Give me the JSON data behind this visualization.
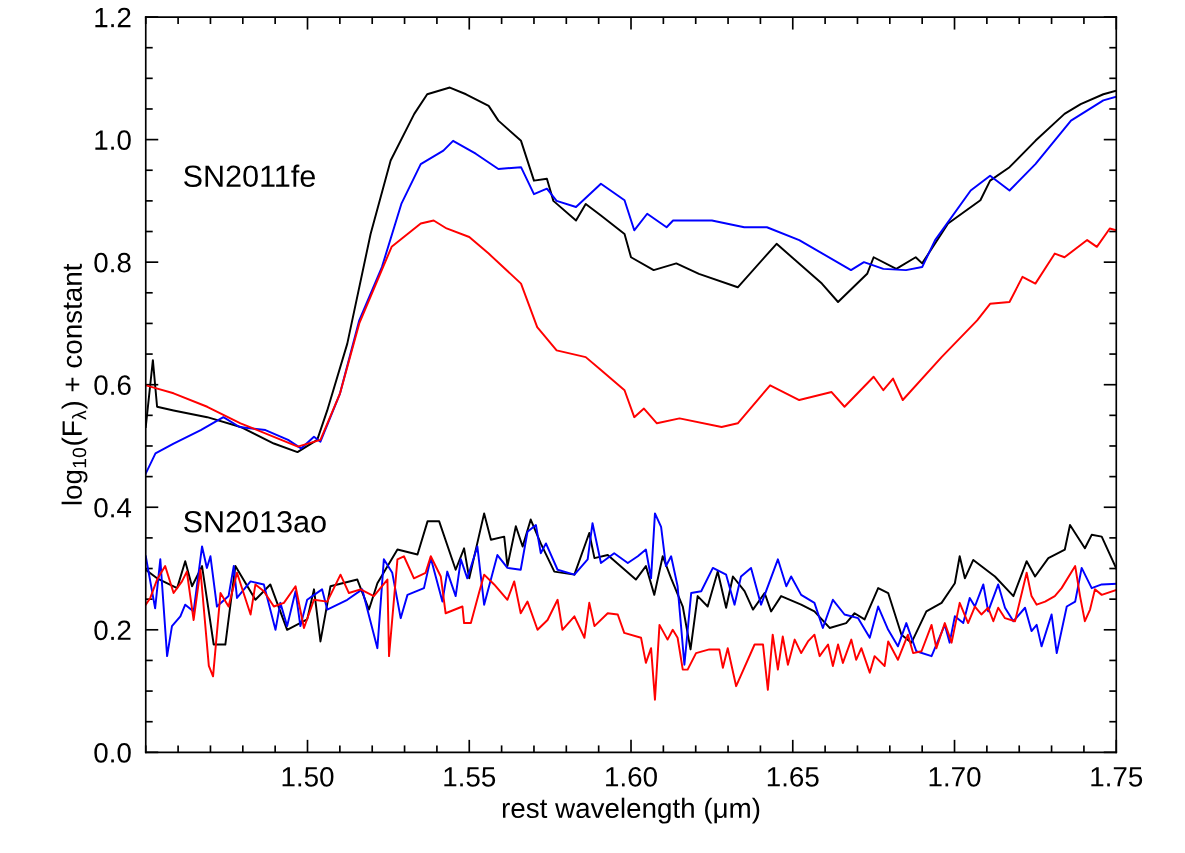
{
  "chart_data": {
    "type": "line",
    "xlabel": "rest wavelength (μm)",
    "ylabel": "log$_{10}$(F$_{λ}$) + constant",
    "annotations": [
      "SN2011fe",
      "SN2013ao"
    ],
    "xlim": [
      1.45,
      1.75
    ],
    "ylim": [
      0,
      1.2
    ],
    "xticks": [
      {
        "value": 1.5,
        "label": "1.50"
      },
      1.55,
      {
        "value": 1.6,
        "label": "1.60"
      },
      1.65,
      {
        "value": 1.7,
        "label": "1.70"
      },
      1.75
    ],
    "yticks": [
      {
        "value": 0,
        "label": "0.0"
      },
      0.2,
      0.4,
      0.6,
      0.8,
      {
        "value": 1,
        "label": "1.0"
      },
      1.2
    ],
    "grid": false,
    "marker": "none",
    "line_style": "solid",
    "series": [
      {
        "color": "#000000",
        "x": [
          1.45,
          1.4522,
          1.4535,
          1.4586,
          1.469,
          1.4793,
          1.4896,
          1.4969,
          1.503,
          1.5061,
          1.5123,
          1.5195,
          1.5257,
          1.533,
          1.537,
          1.544,
          1.549,
          1.556,
          1.559,
          1.566,
          1.57,
          1.574,
          1.576,
          1.583,
          1.586,
          1.5907,
          1.598,
          1.6,
          1.607,
          1.614,
          1.621,
          1.633,
          1.645,
          1.659,
          1.664,
          1.673,
          1.675,
          1.682,
          1.688,
          1.69,
          1.698,
          1.708,
          1.711,
          1.717,
          1.725,
          1.734,
          1.739,
          1.746,
          1.75
        ],
        "values": [
          0.531,
          0.64,
          0.564,
          0.558,
          0.547,
          0.531,
          0.504,
          0.49,
          0.51,
          0.558,
          0.667,
          0.846,
          0.966,
          1.042,
          1.074,
          1.085,
          1.074,
          1.055,
          1.031,
          0.998,
          0.933,
          0.936,
          0.9,
          0.868,
          0.895,
          0.876,
          0.846,
          0.808,
          0.787,
          0.798,
          0.781,
          0.759,
          0.83,
          0.765,
          0.735,
          0.781,
          0.808,
          0.789,
          0.808,
          0.798,
          0.863,
          0.901,
          0.933,
          0.955,
          0.998,
          1.042,
          1.058,
          1.074,
          1.08
        ]
      },
      {
        "color": "#0000ff",
        "x": [
          1.45,
          1.453,
          1.4586,
          1.467,
          1.474,
          1.479,
          1.487,
          1.494,
          1.498,
          1.502,
          1.504,
          1.51,
          1.516,
          1.523,
          1.529,
          1.535,
          1.542,
          1.545,
          1.552,
          1.559,
          1.566,
          1.57,
          1.574,
          1.577,
          1.583,
          1.5907,
          1.598,
          1.601,
          1.605,
          1.611,
          1.613,
          1.625,
          1.635,
          1.642,
          1.652,
          1.668,
          1.672,
          1.678,
          1.685,
          1.69,
          1.694,
          1.705,
          1.711,
          1.717,
          1.725,
          1.736,
          1.746,
          1.75
        ],
        "values": [
          0.455,
          0.488,
          0.504,
          0.526,
          0.547,
          0.531,
          0.526,
          0.51,
          0.496,
          0.515,
          0.507,
          0.585,
          0.705,
          0.792,
          0.895,
          0.96,
          0.982,
          0.998,
          0.977,
          0.952,
          0.955,
          0.911,
          0.92,
          0.9,
          0.89,
          0.928,
          0.901,
          0.852,
          0.879,
          0.857,
          0.868,
          0.868,
          0.857,
          0.857,
          0.836,
          0.787,
          0.8,
          0.789,
          0.787,
          0.792,
          0.836,
          0.917,
          0.941,
          0.917,
          0.96,
          1.031,
          1.064,
          1.07
        ]
      },
      {
        "color": "#ff0000",
        "x": [
          1.45,
          1.4586,
          1.469,
          1.4793,
          1.4896,
          1.497,
          1.504,
          1.51,
          1.516,
          1.526,
          1.535,
          1.539,
          1.543,
          1.55,
          1.556,
          1.566,
          1.571,
          1.577,
          1.586,
          1.5907,
          1.598,
          1.601,
          1.604,
          1.608,
          1.615,
          1.628,
          1.633,
          1.643,
          1.652,
          1.662,
          1.666,
          1.675,
          1.678,
          1.681,
          1.684,
          1.696,
          1.707,
          1.711,
          1.717,
          1.721,
          1.725,
          1.731,
          1.734,
          1.741,
          1.744,
          1.748,
          1.75
        ],
        "values": [
          0.599,
          0.586,
          0.564,
          0.537,
          0.515,
          0.499,
          0.51,
          0.585,
          0.7,
          0.825,
          0.863,
          0.868,
          0.855,
          0.841,
          0.814,
          0.765,
          0.694,
          0.656,
          0.645,
          0.624,
          0.591,
          0.547,
          0.561,
          0.537,
          0.545,
          0.531,
          0.537,
          0.599,
          0.575,
          0.588,
          0.564,
          0.613,
          0.591,
          0.61,
          0.575,
          0.645,
          0.705,
          0.732,
          0.735,
          0.776,
          0.765,
          0.814,
          0.808,
          0.836,
          0.825,
          0.855,
          0.852
        ]
      },
      {
        "color": "#000000",
        "x": [
          1.45,
          1.4535,
          1.4597,
          1.4622,
          1.4643,
          1.4674,
          1.471,
          1.4746,
          1.4777,
          1.4839,
          1.4885,
          1.4937,
          1.4999,
          1.502,
          1.504,
          1.5071,
          1.5154,
          1.519,
          1.5216,
          1.5278,
          1.534,
          1.5371,
          1.5407,
          1.5458,
          1.5484,
          1.55,
          1.5546,
          1.5567,
          1.5608,
          1.5618,
          1.5644,
          1.5665,
          1.569,
          1.5721,
          1.5763,
          1.5825,
          1.5871,
          1.5887,
          1.5928,
          1.6015,
          1.6046,
          1.6072,
          1.6098,
          1.6124,
          1.616,
          1.6184,
          1.6206,
          1.6237,
          1.6268,
          1.6294,
          1.6315,
          1.6351,
          1.6377,
          1.6413,
          1.6433,
          1.6464,
          1.6526,
          1.6567,
          1.6614,
          1.6665,
          1.6691,
          1.6722,
          1.6764,
          1.6795,
          1.6836,
          1.6867,
          1.6913,
          1.696,
          1.7001,
          1.7016,
          1.7032,
          1.7058,
          1.7125,
          1.7182,
          1.7223,
          1.7249,
          1.729,
          1.7341,
          1.7357,
          1.7403,
          1.7424,
          1.7455,
          1.75
        ],
        "values": [
          0.298,
          0.284,
          0.268,
          0.312,
          0.271,
          0.304,
          0.176,
          0.176,
          0.304,
          0.249,
          0.274,
          0.2,
          0.217,
          0.266,
          0.181,
          0.271,
          0.282,
          0.233,
          0.276,
          0.331,
          0.323,
          0.377,
          0.377,
          0.298,
          0.333,
          0.284,
          0.39,
          0.347,
          0.352,
          0.304,
          0.369,
          0.336,
          0.38,
          0.341,
          0.295,
          0.29,
          0.358,
          0.317,
          0.322,
          0.282,
          0.304,
          0.257,
          0.32,
          0.284,
          0.238,
          0.168,
          0.255,
          0.238,
          0.295,
          0.236,
          0.287,
          0.263,
          0.233,
          0.26,
          0.23,
          0.255,
          0.241,
          0.23,
          0.203,
          0.211,
          0.227,
          0.217,
          0.268,
          0.26,
          0.192,
          0.179,
          0.23,
          0.244,
          0.276,
          0.32,
          0.284,
          0.314,
          0.287,
          0.255,
          0.312,
          0.287,
          0.317,
          0.331,
          0.371,
          0.333,
          0.355,
          0.352,
          0.3
        ]
      },
      {
        "color": "#0000ff",
        "x": [
          1.45,
          1.4529,
          1.4545,
          1.4566,
          1.4581,
          1.4607,
          1.4622,
          1.4648,
          1.4674,
          1.4689,
          1.47,
          1.472,
          1.4756,
          1.4772,
          1.4782,
          1.4824,
          1.4865,
          1.4901,
          1.4916,
          1.4937,
          1.4963,
          1.4978,
          1.4999,
          1.5045,
          1.5061,
          1.5123,
          1.5169,
          1.5216,
          1.5236,
          1.5262,
          1.5288,
          1.5309,
          1.536,
          1.5381,
          1.5417,
          1.5432,
          1.5458,
          1.5474,
          1.5494,
          1.5525,
          1.5546,
          1.5587,
          1.5618,
          1.5659,
          1.568,
          1.5706,
          1.5721,
          1.5737,
          1.5773,
          1.5825,
          1.5866,
          1.5881,
          1.5907,
          1.5948,
          1.599,
          1.6021,
          1.6046,
          1.6062,
          1.6074,
          1.6093,
          1.6108,
          1.6124,
          1.6144,
          1.6165,
          1.6186,
          1.6217,
          1.6253,
          1.6294,
          1.632,
          1.634,
          1.6371,
          1.6402,
          1.6454,
          1.648,
          1.6495,
          1.6526,
          1.6567,
          1.6593,
          1.6624,
          1.666,
          1.6702,
          1.6738,
          1.6764,
          1.6795,
          1.6825,
          1.6851,
          1.6882,
          1.6929,
          1.697,
          1.6985,
          1.7001,
          1.7027,
          1.7047,
          1.7063,
          1.7089,
          1.7104,
          1.7135,
          1.7156,
          1.7182,
          1.7218,
          1.7238,
          1.7254,
          1.7269,
          1.73,
          1.7316,
          1.7347,
          1.7373,
          1.7393,
          1.7424,
          1.7455,
          1.75
        ],
        "values": [
          0.32,
          0.235,
          0.315,
          0.157,
          0.206,
          0.222,
          0.241,
          0.23,
          0.336,
          0.301,
          0.32,
          0.238,
          0.255,
          0.304,
          0.252,
          0.279,
          0.274,
          0.2,
          0.244,
          0.206,
          0.263,
          0.206,
          0.249,
          0.266,
          0.233,
          0.249,
          0.266,
          0.17,
          0.315,
          0.293,
          0.219,
          0.257,
          0.268,
          0.317,
          0.246,
          0.295,
          0.255,
          0.315,
          0.284,
          0.336,
          0.241,
          0.322,
          0.301,
          0.298,
          0.36,
          0.371,
          0.325,
          0.341,
          0.298,
          0.29,
          0.315,
          0.374,
          0.309,
          0.325,
          0.309,
          0.32,
          0.331,
          0.284,
          0.39,
          0.368,
          0.304,
          0.32,
          0.271,
          0.143,
          0.26,
          0.263,
          0.301,
          0.29,
          0.241,
          0.287,
          0.301,
          0.241,
          0.315,
          0.271,
          0.287,
          0.257,
          0.244,
          0.203,
          0.249,
          0.225,
          0.219,
          0.187,
          0.238,
          0.2,
          0.173,
          0.211,
          0.165,
          0.157,
          0.208,
          0.179,
          0.222,
          0.211,
          0.252,
          0.238,
          0.274,
          0.23,
          0.274,
          0.236,
          0.214,
          0.236,
          0.198,
          0.208,
          0.173,
          0.225,
          0.162,
          0.238,
          0.246,
          0.301,
          0.268,
          0.274,
          0.275
        ]
      },
      {
        "color": "#ff0000",
        "x": [
          1.45,
          1.4514,
          1.4535,
          1.456,
          1.4586,
          1.4612,
          1.4627,
          1.4648,
          1.4669,
          1.4695,
          1.4708,
          1.4731,
          1.4756,
          1.4782,
          1.4824,
          1.4839,
          1.4865,
          1.4896,
          1.4927,
          1.4963,
          1.4989,
          1.502,
          1.5061,
          1.5102,
          1.5128,
          1.5164,
          1.5205,
          1.5247,
          1.5252,
          1.5278,
          1.5298,
          1.5329,
          1.5365,
          1.5381,
          1.5412,
          1.5427,
          1.5479,
          1.5484,
          1.5505,
          1.553,
          1.5546,
          1.5577,
          1.5618,
          1.5639,
          1.5659,
          1.568,
          1.5711,
          1.5742,
          1.5773,
          1.5788,
          1.5825,
          1.5856,
          1.5871,
          1.5887,
          1.5928,
          1.5959,
          1.5979,
          1.6031,
          1.6046,
          1.6062,
          1.6074,
          1.6088,
          1.6113,
          1.6129,
          1.6144,
          1.616,
          1.6175,
          1.6201,
          1.6242,
          1.6273,
          1.6284,
          1.6299,
          1.6325,
          1.6382,
          1.6408,
          1.6423,
          1.6438,
          1.6454,
          1.6469,
          1.6485,
          1.6506,
          1.6526,
          1.6547,
          1.6567,
          1.6583,
          1.6609,
          1.6624,
          1.664,
          1.6655,
          1.6681,
          1.6696,
          1.6712,
          1.6738,
          1.6753,
          1.6784,
          1.6795,
          1.6825,
          1.6856,
          1.6872,
          1.6898,
          1.6929,
          1.6944,
          1.697,
          1.6991,
          1.7016,
          1.7042,
          1.7063,
          1.7083,
          1.7104,
          1.712,
          1.7135,
          1.7156,
          1.7187,
          1.7223,
          1.7238,
          1.7254,
          1.728,
          1.731,
          1.7331,
          1.7373,
          1.7388,
          1.7403,
          1.7419,
          1.7434,
          1.7455,
          1.75
        ],
        "values": [
          0.241,
          0.252,
          0.282,
          0.304,
          0.26,
          0.279,
          0.295,
          0.216,
          0.298,
          0.141,
          0.124,
          0.26,
          0.238,
          0.293,
          0.225,
          0.274,
          0.263,
          0.238,
          0.244,
          0.271,
          0.203,
          0.249,
          0.246,
          0.29,
          0.26,
          0.266,
          0.255,
          0.282,
          0.157,
          0.315,
          0.32,
          0.284,
          0.293,
          0.32,
          0.287,
          0.227,
          0.238,
          0.211,
          0.211,
          0.26,
          0.29,
          0.274,
          0.249,
          0.279,
          0.227,
          0.246,
          0.2,
          0.216,
          0.249,
          0.2,
          0.222,
          0.187,
          0.244,
          0.206,
          0.227,
          0.225,
          0.195,
          0.187,
          0.146,
          0.17,
          0.086,
          0.208,
          0.184,
          0.2,
          0.187,
          0.135,
          0.135,
          0.162,
          0.168,
          0.168,
          0.138,
          0.17,
          0.108,
          0.176,
          0.176,
          0.102,
          0.192,
          0.135,
          0.189,
          0.143,
          0.184,
          0.162,
          0.181,
          0.192,
          0.157,
          0.176,
          0.141,
          0.176,
          0.146,
          0.184,
          0.151,
          0.17,
          0.13,
          0.157,
          0.141,
          0.181,
          0.151,
          0.192,
          0.162,
          0.165,
          0.208,
          0.17,
          0.211,
          0.179,
          0.244,
          0.211,
          0.238,
          0.225,
          0.236,
          0.214,
          0.236,
          0.219,
          0.214,
          0.293,
          0.255,
          0.241,
          0.246,
          0.255,
          0.268,
          0.304,
          0.255,
          0.214,
          0.233,
          0.266,
          0.257,
          0.265
        ]
      }
    ]
  }
}
